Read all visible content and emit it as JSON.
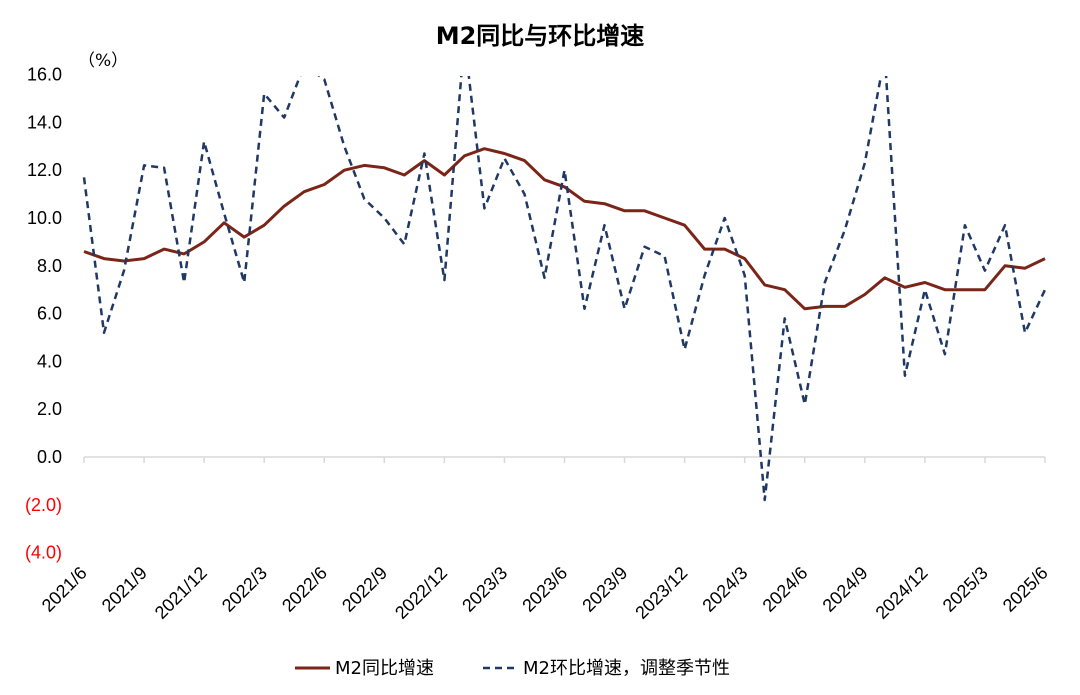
{
  "chart_data": {
    "type": "line",
    "title": "M2同比与环比增速",
    "unit_label": "（%）",
    "ylim": [
      -4,
      16
    ],
    "yticks": [
      {
        "value": 16,
        "label": "16.0"
      },
      {
        "value": 14,
        "label": "14.0"
      },
      {
        "value": 12,
        "label": "12.0"
      },
      {
        "value": 10,
        "label": "10.0"
      },
      {
        "value": 8,
        "label": "8.0"
      },
      {
        "value": 6,
        "label": "6.0"
      },
      {
        "value": 4,
        "label": "4.0"
      },
      {
        "value": 2,
        "label": "2.0"
      },
      {
        "value": 0,
        "label": "0.0"
      },
      {
        "value": -2,
        "label": "(2.0)"
      },
      {
        "value": -4,
        "label": "(4.0)"
      }
    ],
    "negative_tick_color": "#ff0000",
    "x": [
      "2021/6",
      "2021/7",
      "2021/8",
      "2021/9",
      "2021/10",
      "2021/11",
      "2021/12",
      "2022/1",
      "2022/2",
      "2022/3",
      "2022/4",
      "2022/5",
      "2022/6",
      "2022/7",
      "2022/8",
      "2022/9",
      "2022/10",
      "2022/11",
      "2022/12",
      "2023/1",
      "2023/2",
      "2023/3",
      "2023/4",
      "2023/5",
      "2023/6",
      "2023/7",
      "2023/8",
      "2023/9",
      "2023/10",
      "2023/11",
      "2023/12",
      "2024/1",
      "2024/2",
      "2024/3",
      "2024/4",
      "2024/5",
      "2024/6",
      "2024/7",
      "2024/8",
      "2024/9",
      "2024/10",
      "2024/11",
      "2024/12",
      "2025/1",
      "2025/2",
      "2025/3",
      "2025/4",
      "2025/5",
      "2025/6"
    ],
    "xtick_labels": [
      "2021/6",
      "2021/9",
      "2021/12",
      "2022/3",
      "2022/6",
      "2022/9",
      "2022/12",
      "2023/3",
      "2023/6",
      "2023/9",
      "2023/12",
      "2024/3",
      "2024/6",
      "2024/9",
      "2024/12",
      "2025/3",
      "2025/6"
    ],
    "series": [
      {
        "name": "M2同比增速",
        "color": "#7b2518",
        "dash": "solid",
        "values": [
          8.6,
          8.3,
          8.2,
          8.3,
          8.7,
          8.5,
          9.0,
          9.8,
          9.2,
          9.7,
          10.5,
          11.1,
          11.4,
          12.0,
          12.2,
          12.1,
          11.8,
          12.4,
          11.8,
          12.6,
          12.9,
          12.7,
          12.4,
          11.6,
          11.3,
          10.7,
          10.6,
          10.3,
          10.3,
          10.0,
          9.7,
          8.7,
          8.7,
          8.3,
          7.2,
          7.0,
          6.2,
          6.3,
          6.3,
          6.8,
          7.5,
          7.1,
          7.3,
          7.0,
          7.0,
          7.0,
          8.0,
          7.9,
          8.3
        ]
      },
      {
        "name": "M2环比增速，调整季节性",
        "color": "#1f3864",
        "dash": "dashed",
        "values": [
          11.7,
          5.2,
          7.8,
          12.2,
          12.1,
          7.3,
          13.2,
          10.2,
          7.3,
          15.2,
          14.2,
          16.4,
          15.8,
          13.0,
          10.8,
          10.0,
          8.9,
          12.7,
          7.4,
          17.5,
          10.4,
          12.5,
          11.0,
          7.5,
          12.0,
          6.2,
          9.7,
          6.2,
          8.8,
          8.4,
          4.5,
          7.6,
          10.0,
          7.6,
          -1.8,
          5.8,
          2.2,
          7.3,
          9.5,
          12.3,
          16.8,
          3.4,
          7.0,
          4.3,
          9.7,
          7.8,
          9.7,
          5.2,
          7.0
        ]
      }
    ],
    "legend": {
      "position": "bottom"
    },
    "grid": false
  }
}
